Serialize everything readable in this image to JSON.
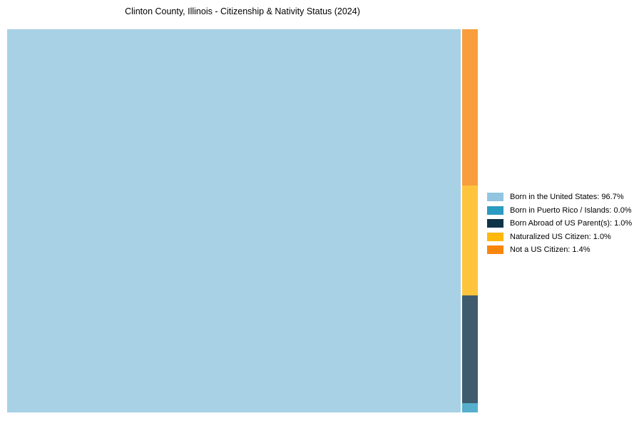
{
  "title": "Clinton County, Illinois - Citizenship & Nativity Status (2024)",
  "chart_data": {
    "type": "treemap",
    "title": "Clinton County, Illinois - Citizenship & Nativity Status (2024)",
    "categories": [
      "Born in the United States",
      "Born in Puerto Rico / Islands",
      "Born Abroad of US Parent(s)",
      "Naturalized US Citizen",
      "Not a US Citizen"
    ],
    "values": [
      96.7,
      0.0,
      1.0,
      1.0,
      1.4
    ],
    "unit": "%",
    "legend_position": "right",
    "colors": [
      "#92C5E0",
      "#2A9BC1",
      "#0E3349",
      "#FEB70B",
      "#F8860D"
    ]
  },
  "legend": {
    "items": [
      {
        "label": "Born in the United States: 96.7%",
        "color": "#92C5E0"
      },
      {
        "label": "Born in Puerto Rico / Islands: 0.0%",
        "color": "#2A9BC1"
      },
      {
        "label": "Born Abroad of US Parent(s): 1.0%",
        "color": "#0E3349"
      },
      {
        "label": "Naturalized US Citizen: 1.0%",
        "color": "#FEB70B"
      },
      {
        "label": "Not a US Citizen: 1.4%",
        "color": "#F8860D"
      }
    ]
  }
}
